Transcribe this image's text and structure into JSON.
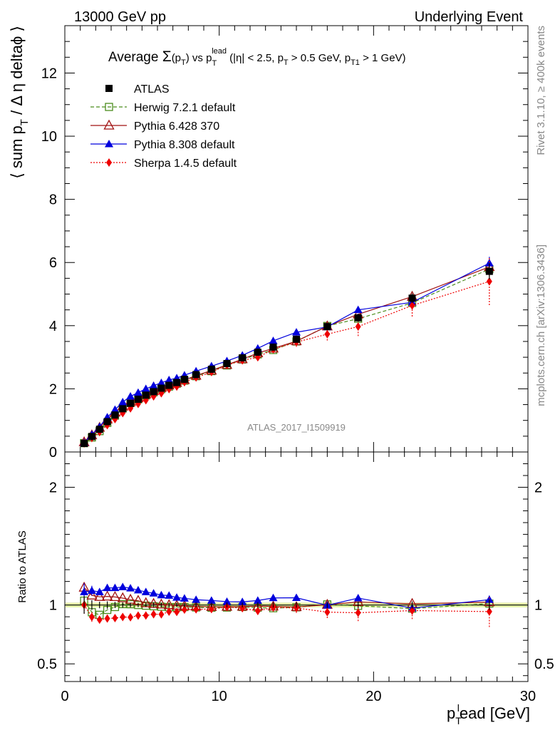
{
  "header": {
    "left": "13000 GeV pp",
    "right": "Underlying Event"
  },
  "side": {
    "rivet": "Rivet 3.1.10, ≥ 400k events",
    "mcplots": "mcplots.cern.ch [arXiv:1306.3436]"
  },
  "title": {
    "lead": "Average ",
    "sigma": "Σ",
    "p": "(p",
    "t_sub": "T",
    "close": ")",
    "vs": " vs p",
    "lead_sup": "lead",
    "t_sub2": "T",
    "cuts1": " (|η| < 2.5, p",
    "t_sub3": "T",
    "cuts2": " > 0.5 GeV, p",
    "t1_sub": "T1",
    "cuts3": " > 1 GeV)"
  },
  "analysis_label": "ATLAS_2017_I1509919",
  "chart_data": {
    "type": "line",
    "xlabel": "p_T^lead [GeV]",
    "xlabel_parts": {
      "p": "p",
      "t": "T",
      "sup": "l",
      "rest": "ead [GeV]"
    },
    "ylabel_main_parts": {
      "open": "⟨ sum p",
      "t": "T",
      "rest": " / Δ η deltaϕ ⟩"
    },
    "ylabel_ratio": "Ratio to ATLAS",
    "xlim": [
      0,
      30
    ],
    "ylim_main": [
      0,
      13.5
    ],
    "ylim_ratio": [
      0.35,
      2.3
    ],
    "x_ticks": [
      "0",
      "10",
      "20",
      "30"
    ],
    "y_ticks_main": [
      "0",
      "2",
      "4",
      "6",
      "8",
      "10",
      "12"
    ],
    "y_ticks_ratio": [
      "0.5",
      "1",
      "2"
    ],
    "x": [
      1.25,
      1.75,
      2.25,
      2.75,
      3.25,
      3.75,
      4.25,
      4.75,
      5.25,
      5.75,
      6.25,
      6.75,
      7.25,
      7.75,
      8.5,
      9.5,
      10.5,
      11.5,
      12.5,
      13.5,
      15.0,
      17.0,
      19.0,
      22.5,
      27.5
    ],
    "series": [
      {
        "name": "ATLAS",
        "legend": "ATLAS",
        "color": "#000000",
        "values": [
          0.27,
          0.49,
          0.72,
          0.96,
          1.17,
          1.37,
          1.54,
          1.67,
          1.8,
          1.91,
          2.02,
          2.11,
          2.2,
          2.3,
          2.45,
          2.62,
          2.8,
          2.98,
          3.16,
          3.32,
          3.57,
          3.97,
          4.25,
          4.87,
          5.72
        ],
        "errors": [
          0.02,
          0.02,
          0.02,
          0.03,
          0.03,
          0.03,
          0.03,
          0.03,
          0.03,
          0.04,
          0.04,
          0.04,
          0.04,
          0.04,
          0.05,
          0.05,
          0.06,
          0.06,
          0.07,
          0.07,
          0.08,
          0.1,
          0.12,
          0.15,
          0.25
        ]
      },
      {
        "name": "Herwig",
        "legend": "Herwig 7.2.1 default",
        "color": "#4a8c1c",
        "values": [
          0.28,
          0.46,
          0.66,
          0.92,
          1.15,
          1.38,
          1.55,
          1.67,
          1.79,
          1.89,
          1.99,
          2.07,
          2.16,
          2.26,
          2.4,
          2.56,
          2.74,
          2.93,
          3.09,
          3.23,
          3.5,
          3.99,
          4.22,
          4.72,
          5.79
        ]
      },
      {
        "name": "Pythia6",
        "legend": "Pythia 6.428 370",
        "color": "#a01010",
        "values": [
          0.31,
          0.53,
          0.77,
          1.03,
          1.25,
          1.45,
          1.61,
          1.73,
          1.83,
          1.93,
          2.03,
          2.11,
          2.19,
          2.28,
          2.42,
          2.58,
          2.76,
          2.94,
          3.13,
          3.28,
          3.51,
          3.98,
          4.36,
          4.92,
          5.86
        ]
      },
      {
        "name": "Pythia8",
        "legend": "Pythia 8.308 default",
        "color": "#0000dd",
        "values": [
          0.3,
          0.55,
          0.8,
          1.1,
          1.34,
          1.58,
          1.76,
          1.88,
          2.0,
          2.1,
          2.19,
          2.28,
          2.34,
          2.43,
          2.56,
          2.72,
          2.88,
          3.06,
          3.28,
          3.52,
          3.79,
          3.96,
          4.5,
          4.74,
          5.98
        ],
        "errors": [
          0.02,
          0.02,
          0.02,
          0.03,
          0.03,
          0.03,
          0.03,
          0.03,
          0.03,
          0.03,
          0.03,
          0.04,
          0.04,
          0.04,
          0.04,
          0.05,
          0.05,
          0.05,
          0.06,
          0.06,
          0.07,
          0.08,
          0.1,
          0.12,
          0.2
        ]
      },
      {
        "name": "Sherpa",
        "legend": "Sherpa 1.4.5 default",
        "color": "#ee0000",
        "values": [
          0.27,
          0.44,
          0.63,
          0.85,
          1.04,
          1.23,
          1.38,
          1.52,
          1.64,
          1.76,
          1.86,
          1.99,
          2.07,
          2.21,
          2.36,
          2.53,
          2.75,
          2.9,
          3.0,
          3.25,
          3.48,
          3.73,
          3.97,
          4.64,
          5.4
        ],
        "errors": [
          0.02,
          0.02,
          0.02,
          0.02,
          0.03,
          0.03,
          0.03,
          0.03,
          0.04,
          0.04,
          0.04,
          0.05,
          0.05,
          0.05,
          0.06,
          0.07,
          0.08,
          0.09,
          0.1,
          0.12,
          0.15,
          0.2,
          0.3,
          0.35,
          0.75
        ]
      }
    ]
  }
}
